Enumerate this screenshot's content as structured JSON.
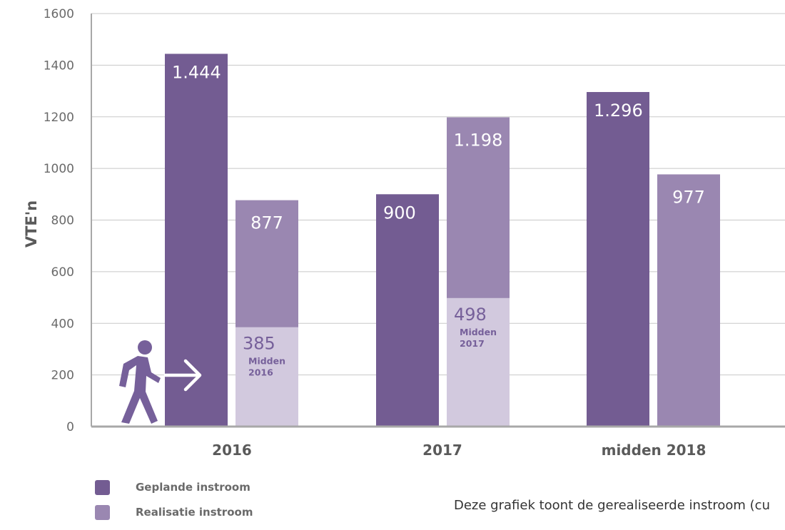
{
  "chart_data": {
    "type": "bar",
    "ylabel": "VTE'n",
    "ylim": [
      0,
      1600
    ],
    "yticks": [
      0,
      200,
      400,
      600,
      800,
      1000,
      1200,
      1400,
      1600
    ],
    "grid": true,
    "categories": [
      "2016",
      "2017",
      "midden 2018"
    ],
    "series": [
      {
        "name": "Geplande instroom",
        "color": "#735c92",
        "values": [
          1444,
          900,
          1296
        ],
        "labels": [
          "1.444",
          "900",
          "1.296"
        ]
      },
      {
        "name": "Realisatie instroom",
        "color": "#9a87b1",
        "values": [
          877,
          1198,
          977
        ],
        "labels": [
          "877",
          "1.198",
          "977"
        ]
      }
    ],
    "mid_year": {
      "color": "#d2c9de",
      "values": [
        385,
        498,
        null
      ],
      "labels": [
        "385",
        "498",
        ""
      ],
      "notes": [
        [
          "Midden",
          "2016"
        ],
        [
          "Midden",
          "2017"
        ],
        []
      ]
    },
    "legend_position": "bottom-left"
  },
  "caption": "Deze grafiek toont de gerealiseerde instroom (cu"
}
